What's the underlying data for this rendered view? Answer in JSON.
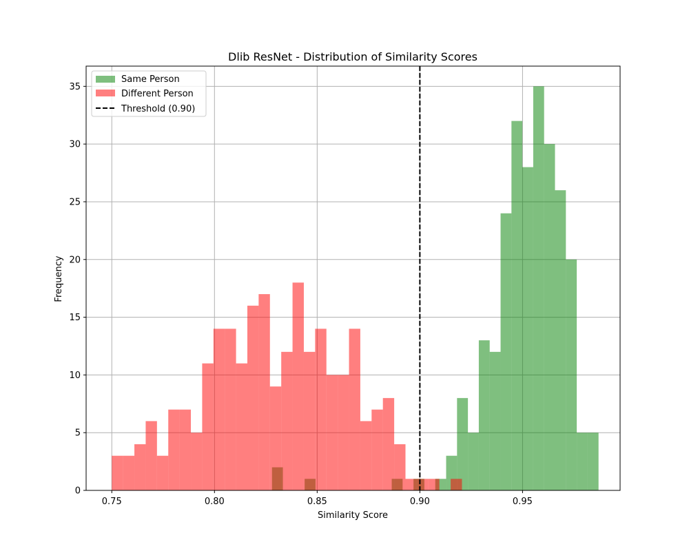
{
  "chart_data": {
    "type": "bar",
    "title": "Dlib ResNet - Distribution of Similarity Scores",
    "xlabel": "Similarity Score",
    "ylabel": "Frequency",
    "xlim": [
      0.7375,
      0.9975
    ],
    "ylim": [
      0,
      36.75
    ],
    "xticks": [
      0.75,
      0.8,
      0.85,
      0.9,
      0.95
    ],
    "xtick_labels": [
      "0.75",
      "0.80",
      "0.85",
      "0.90",
      "0.95"
    ],
    "yticks": [
      0,
      5,
      10,
      15,
      20,
      25,
      30,
      35
    ],
    "ytick_labels": [
      "0",
      "5",
      "10",
      "15",
      "20",
      "25",
      "30",
      "35"
    ],
    "grid": true,
    "legend_position": "top-left",
    "threshold": {
      "x": 0.9,
      "label": "Threshold (0.90)",
      "color": "#000000",
      "style": "dashed"
    },
    "series": [
      {
        "name": "Different Person",
        "color": "#ff0000",
        "alpha": 0.5,
        "bins": [
          {
            "x0": 0.75,
            "x1": 0.7555,
            "value": 3
          },
          {
            "x0": 0.7555,
            "x1": 0.761,
            "value": 3
          },
          {
            "x0": 0.761,
            "x1": 0.7665,
            "value": 4
          },
          {
            "x0": 0.7665,
            "x1": 0.772,
            "value": 6
          },
          {
            "x0": 0.772,
            "x1": 0.7775,
            "value": 3
          },
          {
            "x0": 0.7775,
            "x1": 0.783,
            "value": 7
          },
          {
            "x0": 0.783,
            "x1": 0.7885,
            "value": 7
          },
          {
            "x0": 0.7885,
            "x1": 0.794,
            "value": 5
          },
          {
            "x0": 0.794,
            "x1": 0.7995,
            "value": 11
          },
          {
            "x0": 0.7995,
            "x1": 0.805,
            "value": 14
          },
          {
            "x0": 0.805,
            "x1": 0.8105,
            "value": 14
          },
          {
            "x0": 0.8105,
            "x1": 0.816,
            "value": 11
          },
          {
            "x0": 0.816,
            "x1": 0.8215,
            "value": 16
          },
          {
            "x0": 0.8215,
            "x1": 0.827,
            "value": 17
          },
          {
            "x0": 0.827,
            "x1": 0.8325,
            "value": 9
          },
          {
            "x0": 0.8325,
            "x1": 0.838,
            "value": 12
          },
          {
            "x0": 0.838,
            "x1": 0.8435,
            "value": 18
          },
          {
            "x0": 0.8435,
            "x1": 0.849,
            "value": 12
          },
          {
            "x0": 0.849,
            "x1": 0.8545,
            "value": 14
          },
          {
            "x0": 0.8545,
            "x1": 0.86,
            "value": 10
          },
          {
            "x0": 0.86,
            "x1": 0.8655,
            "value": 10
          },
          {
            "x0": 0.8655,
            "x1": 0.871,
            "value": 14
          },
          {
            "x0": 0.871,
            "x1": 0.8765,
            "value": 6
          },
          {
            "x0": 0.8765,
            "x1": 0.882,
            "value": 7
          },
          {
            "x0": 0.882,
            "x1": 0.8875,
            "value": 8
          },
          {
            "x0": 0.8875,
            "x1": 0.893,
            "value": 4
          },
          {
            "x0": 0.893,
            "x1": 0.8985,
            "value": 1
          },
          {
            "x0": 0.8985,
            "x1": 0.904,
            "value": 1
          },
          {
            "x0": 0.904,
            "x1": 0.9095,
            "value": 1
          },
          {
            "x0": 0.9095,
            "x1": 0.915,
            "value": 0
          },
          {
            "x0": 0.915,
            "x1": 0.9205,
            "value": 1
          }
        ]
      },
      {
        "name": "Same Person",
        "color": "#008000",
        "alpha": 0.5,
        "bins": [
          {
            "x0": 0.828,
            "x1": 0.8333,
            "value": 2
          },
          {
            "x0": 0.8333,
            "x1": 0.8386,
            "value": 0
          },
          {
            "x0": 0.8386,
            "x1": 0.8439,
            "value": 0
          },
          {
            "x0": 0.8439,
            "x1": 0.8492,
            "value": 1
          },
          {
            "x0": 0.8492,
            "x1": 0.8545,
            "value": 0
          },
          {
            "x0": 0.8545,
            "x1": 0.8598,
            "value": 0
          },
          {
            "x0": 0.8598,
            "x1": 0.8651,
            "value": 0
          },
          {
            "x0": 0.8651,
            "x1": 0.8704,
            "value": 0
          },
          {
            "x0": 0.8704,
            "x1": 0.8757,
            "value": 0
          },
          {
            "x0": 0.8757,
            "x1": 0.881,
            "value": 0
          },
          {
            "x0": 0.881,
            "x1": 0.8863,
            "value": 0
          },
          {
            "x0": 0.8863,
            "x1": 0.8916,
            "value": 1
          },
          {
            "x0": 0.8916,
            "x1": 0.8969,
            "value": 0
          },
          {
            "x0": 0.8969,
            "x1": 0.9022,
            "value": 1
          },
          {
            "x0": 0.9022,
            "x1": 0.9075,
            "value": 0
          },
          {
            "x0": 0.9075,
            "x1": 0.9128,
            "value": 1
          },
          {
            "x0": 0.9128,
            "x1": 0.9181,
            "value": 3
          },
          {
            "x0": 0.9181,
            "x1": 0.9234,
            "value": 8
          },
          {
            "x0": 0.9234,
            "x1": 0.9287,
            "value": 5
          },
          {
            "x0": 0.9287,
            "x1": 0.934,
            "value": 13
          },
          {
            "x0": 0.934,
            "x1": 0.9393,
            "value": 12
          },
          {
            "x0": 0.9393,
            "x1": 0.9446,
            "value": 24
          },
          {
            "x0": 0.9446,
            "x1": 0.9499,
            "value": 32
          },
          {
            "x0": 0.9499,
            "x1": 0.9552,
            "value": 28
          },
          {
            "x0": 0.9552,
            "x1": 0.9605,
            "value": 35
          },
          {
            "x0": 0.9605,
            "x1": 0.9658,
            "value": 30
          },
          {
            "x0": 0.9658,
            "x1": 0.9711,
            "value": 26
          },
          {
            "x0": 0.9711,
            "x1": 0.9764,
            "value": 20
          },
          {
            "x0": 0.9764,
            "x1": 0.9817,
            "value": 5
          },
          {
            "x0": 0.9817,
            "x1": 0.987,
            "value": 5
          }
        ]
      }
    ],
    "legend_entries": [
      "Same Person",
      "Different Person",
      "Threshold (0.90)"
    ],
    "legend_order": [
      1,
      0
    ]
  }
}
